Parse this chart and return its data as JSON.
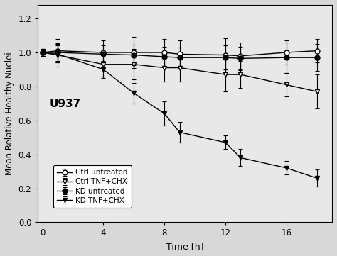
{
  "title": "U937",
  "xlabel": "Time [h]",
  "ylabel": "Mean Relative Healthy Nuclei",
  "xlim": [
    -0.3,
    19.0
  ],
  "ylim": [
    0,
    1.28
  ],
  "yticks": [
    0,
    0.2,
    0.4,
    0.6,
    0.8,
    1.0,
    1.2
  ],
  "xticks": [
    0,
    4,
    8,
    12,
    16
  ],
  "series": [
    {
      "label": "Ctrl untreated",
      "x": [
        0,
        1,
        4,
        6,
        8,
        9,
        12,
        13,
        16,
        18
      ],
      "y": [
        1.0,
        1.01,
        1.0,
        1.0,
        1.0,
        0.99,
        0.985,
        0.98,
        1.0,
        1.01
      ],
      "yerr": [
        0.02,
        0.07,
        0.07,
        0.09,
        0.08,
        0.08,
        0.1,
        0.08,
        0.07,
        0.07
      ],
      "marker": "o",
      "markerfacecolor": "white",
      "markeredgecolor": "black",
      "color": "black",
      "markersize": 5,
      "linewidth": 1.0
    },
    {
      "label": "Ctrl TNF+CHX",
      "x": [
        0,
        1,
        4,
        6,
        8,
        9,
        12,
        13,
        16,
        18
      ],
      "y": [
        1.0,
        0.985,
        0.93,
        0.93,
        0.91,
        0.91,
        0.87,
        0.87,
        0.81,
        0.77
      ],
      "yerr": [
        0.02,
        0.07,
        0.07,
        0.09,
        0.08,
        0.08,
        0.1,
        0.08,
        0.07,
        0.1
      ],
      "marker": "v",
      "markerfacecolor": "white",
      "markeredgecolor": "black",
      "color": "black",
      "markersize": 5,
      "linewidth": 1.0
    },
    {
      "label": "KD untreated",
      "x": [
        0,
        1,
        4,
        6,
        8,
        9,
        12,
        13,
        16,
        18
      ],
      "y": [
        1.0,
        1.0,
        0.99,
        0.985,
        0.975,
        0.97,
        0.97,
        0.965,
        0.97,
        0.97
      ],
      "yerr": [
        0.02,
        0.05,
        0.05,
        0.06,
        0.06,
        0.06,
        0.07,
        0.07,
        0.09,
        0.08
      ],
      "marker": "o",
      "markerfacecolor": "black",
      "markeredgecolor": "black",
      "color": "black",
      "markersize": 5,
      "linewidth": 1.0
    },
    {
      "label": "KD TNF+CHX",
      "x": [
        0,
        1,
        4,
        6,
        8,
        9,
        12,
        13,
        16,
        18
      ],
      "y": [
        1.0,
        0.99,
        0.9,
        0.76,
        0.64,
        0.53,
        0.47,
        0.38,
        0.32,
        0.26
      ],
      "yerr": [
        0.02,
        0.05,
        0.05,
        0.06,
        0.07,
        0.06,
        0.04,
        0.05,
        0.04,
        0.05
      ],
      "marker": "v",
      "markerfacecolor": "black",
      "markeredgecolor": "black",
      "color": "black",
      "markersize": 5,
      "linewidth": 1.0
    }
  ],
  "background_color": "#d8d8d8",
  "plot_bg_color": "#e8e8e8"
}
